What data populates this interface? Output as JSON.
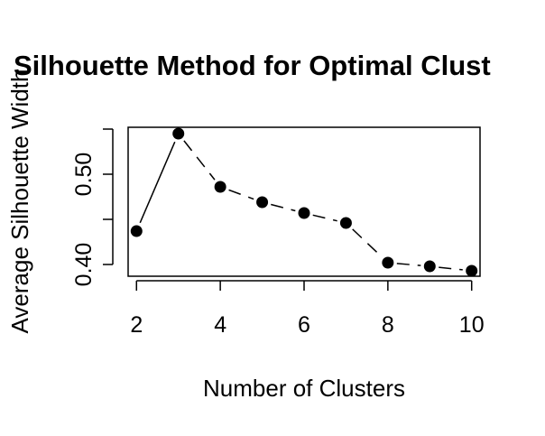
{
  "chart_data": {
    "type": "line",
    "title": "Silhouette Method for Optimal Clust",
    "xlabel": "Number of Clusters",
    "ylabel": "Average Silhouette Width",
    "x": [
      2,
      3,
      4,
      5,
      6,
      7,
      8,
      9,
      10
    ],
    "y": [
      0.437,
      0.545,
      0.486,
      0.469,
      0.457,
      0.446,
      0.402,
      0.398,
      0.393
    ],
    "xlim": [
      1.8,
      10.2
    ],
    "ylim": [
      0.387,
      0.552
    ],
    "x_ticks": [
      2,
      4,
      6,
      8,
      10
    ],
    "x_tick_labels": [
      "2",
      "4",
      "6",
      "8",
      "10"
    ],
    "y_ticks": [
      0.4,
      0.45,
      0.5,
      0.55
    ],
    "y_tick_labels": [
      "0.40",
      "",
      "0.50",
      ""
    ],
    "line_style": "solid then dashed",
    "marker": "filled circle",
    "grid": false,
    "colors": {
      "line": "#000000",
      "marker": "#000000",
      "background": "#ffffff"
    }
  }
}
